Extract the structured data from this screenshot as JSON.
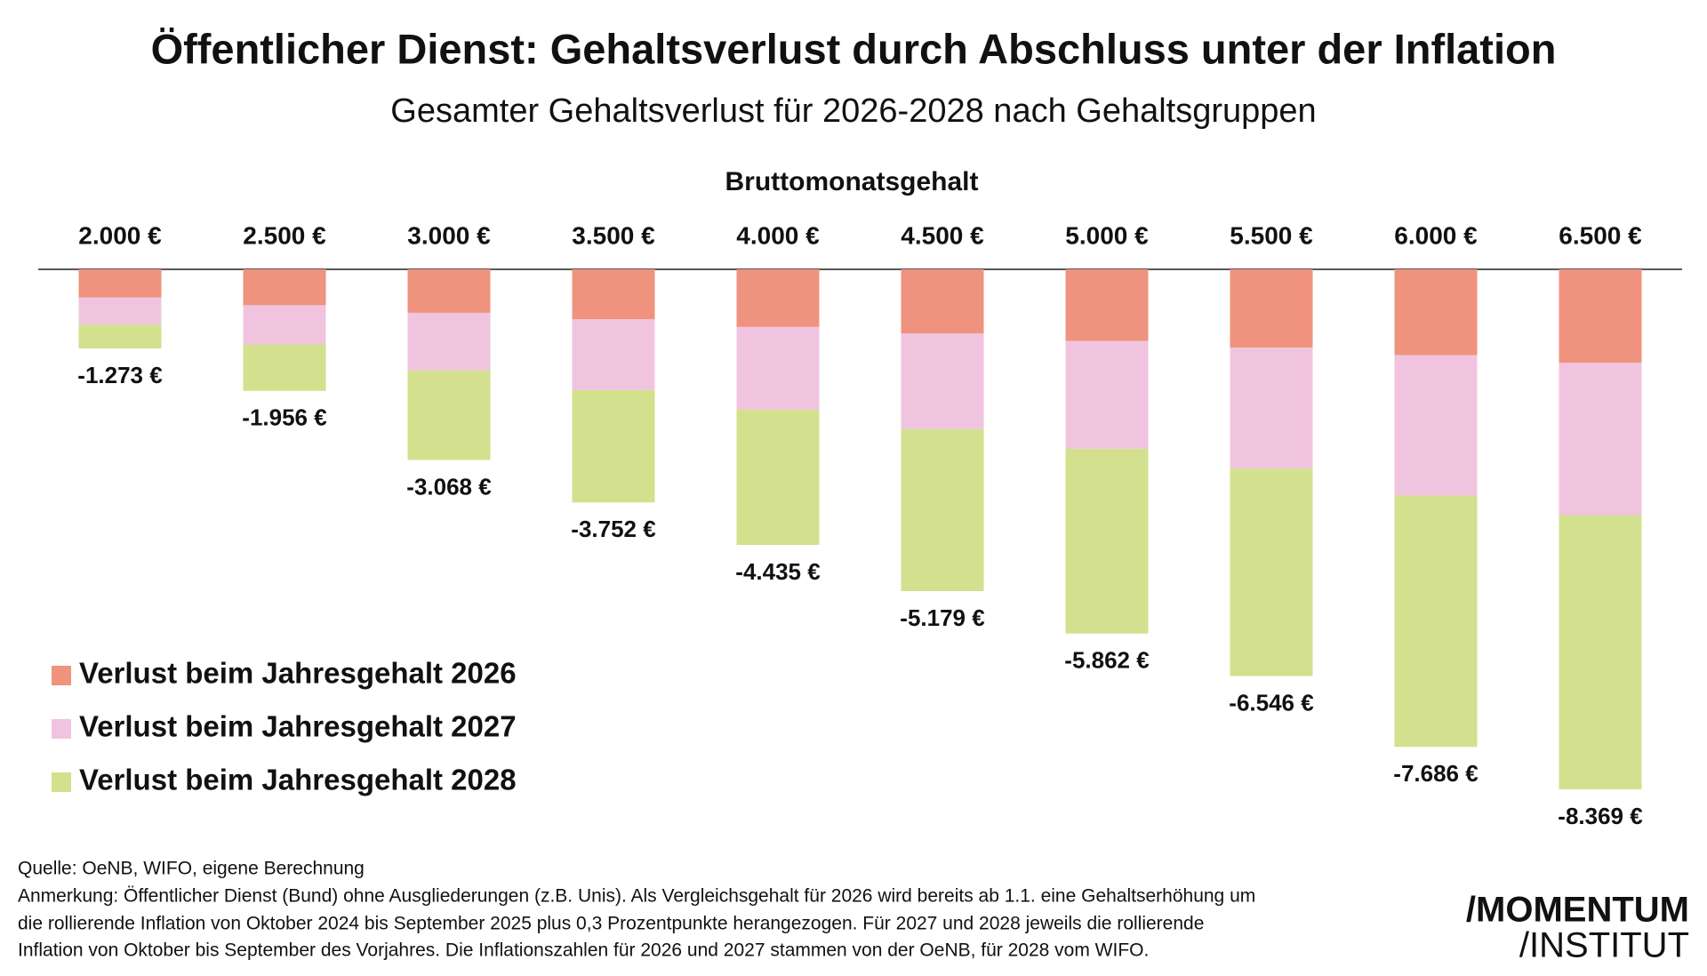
{
  "chart_data": {
    "type": "stacked-bar",
    "title": "Öffentlicher Dienst: Gehaltsverlust durch Abschluss unter der Inflation",
    "subtitle": "Gesamter Gehaltsverlust für 2026-2028 nach Gehaltsgruppen",
    "x_label": "Bruttomonatsgehalt",
    "categories": [
      "2.000 €",
      "2.500 €",
      "3.000 €",
      "3.500 €",
      "4.000 €",
      "4.500 €",
      "5.000 €",
      "5.500 €",
      "6.000 €",
      "6.500 €"
    ],
    "series": [
      {
        "name": "Verlust beim Jahresgehalt 2026",
        "color": "#ef937e",
        "values": [
          -455,
          -578,
          -700,
          -805,
          -928,
          -1033,
          -1155,
          -1260,
          -1383,
          -1505
        ]
      },
      {
        "name": "Verlust beim Jahresgehalt 2027",
        "color": "#f0c4df",
        "values": [
          -438,
          -630,
          -928,
          -1138,
          -1330,
          -1540,
          -1733,
          -1943,
          -2258,
          -2450
        ]
      },
      {
        "name": "Verlust beim Jahresgehalt 2028",
        "color": "#d3e08e",
        "values": [
          -380,
          -748,
          -1440,
          -1809,
          -2177,
          -2606,
          -2974,
          -3343,
          -4045,
          -4414
        ]
      }
    ],
    "totals": {
      "values": [
        -1273,
        -1956,
        -3068,
        -3752,
        -4435,
        -5179,
        -5862,
        -6546,
        -7686,
        -8369
      ],
      "value_labels": [
        "-1.273 €",
        "-1.956 €",
        "-3.068 €",
        "-3.752 €",
        "-4.435 €",
        "-5.179 €",
        "-5.862 €",
        "-6.546 €",
        "-7.686 €",
        "-8.369 €"
      ]
    },
    "source": "Quelle:  OeNB, WIFO, eigene Berechnung",
    "notes": [
      "Anmerkung: Öffentlicher Dienst (Bund) ohne Ausgliederungen (z.B. Unis). Als Vergleichsgehalt für 2026 wird bereits ab 1.1.  eine Gehaltserhöhung um",
      "die rollierende Inflation von Oktober 2024 bis September 2025 plus 0,3 Prozentpunkte herangezogen.  Für 2027 und 2028 jeweils die rollierende",
      "Inflation von Oktober bis September des Vorjahres. Die Inflationszahlen für 2026 und 2027 stammen von der OeNB, für 2028 vom WIFO."
    ],
    "logo": [
      "/MOMENTUM",
      "/INSTITUT"
    ]
  }
}
